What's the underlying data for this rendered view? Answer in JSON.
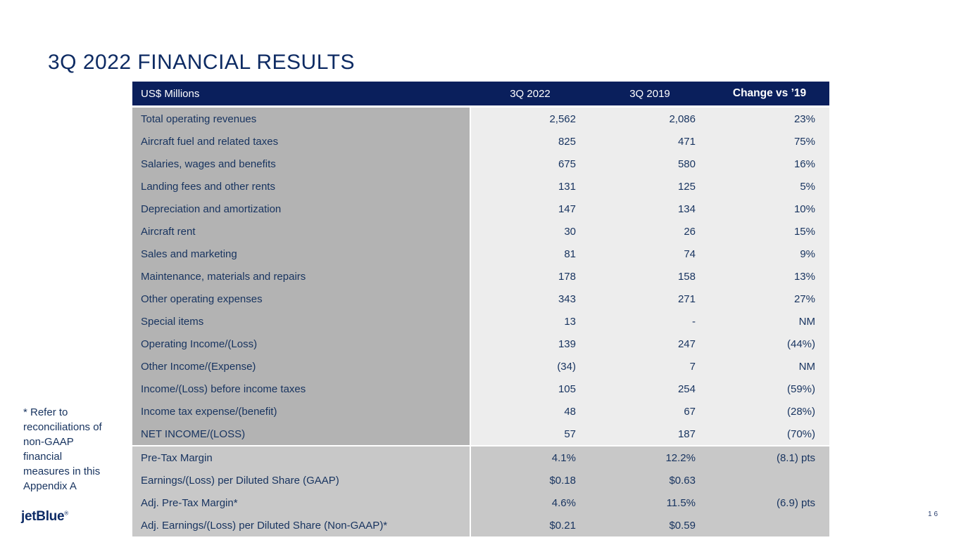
{
  "slide": {
    "title": "3Q 2022 FINANCIAL RESULTS",
    "footnote": "* Refer to reconciliations of non-GAAP financial measures in this Appendix A",
    "logo_text": "jetBlue",
    "logo_trademark": "®",
    "page_number": "16"
  },
  "colors": {
    "header_bg": "#0a1f5c",
    "label_column_bg": "#b3b3b3",
    "values_bg": "#ededed",
    "summary_bg": "#c8c8c8",
    "navy_text": "#17335f",
    "title_navy": "#0e2b63"
  },
  "table": {
    "unit_header": "US$ Millions",
    "col_headers": [
      "3Q 2022",
      "3Q 2019",
      "Change vs ’19"
    ],
    "rows": [
      {
        "label": "Total operating revenues",
        "v2022": "2,562",
        "v2019": "2,086",
        "change": "23%",
        "section": "main"
      },
      {
        "label": "Aircraft fuel and related taxes",
        "v2022": "825",
        "v2019": "471",
        "change": "75%",
        "section": "main"
      },
      {
        "label": "Salaries, wages and benefits",
        "v2022": "675",
        "v2019": "580",
        "change": "16%",
        "section": "main"
      },
      {
        "label": "Landing fees and other rents",
        "v2022": "131",
        "v2019": "125",
        "change": "5%",
        "section": "main"
      },
      {
        "label": "Depreciation and amortization",
        "v2022": "147",
        "v2019": "134",
        "change": "10%",
        "section": "main"
      },
      {
        "label": "Aircraft rent",
        "v2022": "30",
        "v2019": "26",
        "change": "15%",
        "section": "main"
      },
      {
        "label": "Sales and marketing",
        "v2022": "81",
        "v2019": "74",
        "change": "9%",
        "section": "main"
      },
      {
        "label": "Maintenance, materials and repairs",
        "v2022": "178",
        "v2019": "158",
        "change": "13%",
        "section": "main"
      },
      {
        "label": "Other operating expenses",
        "v2022": "343",
        "v2019": "271",
        "change": "27%",
        "section": "main"
      },
      {
        "label": "Special items",
        "v2022": "13",
        "v2019": "-",
        "change": "NM",
        "section": "main"
      },
      {
        "label": "Operating Income/(Loss)",
        "v2022": "139",
        "v2019": "247",
        "change": "(44%)",
        "section": "main"
      },
      {
        "label": "Other Income/(Expense)",
        "v2022": "(34)",
        "v2019": "7",
        "change": "NM",
        "section": "main"
      },
      {
        "label": "Income/(Loss) before income taxes",
        "v2022": "105",
        "v2019": "254",
        "change": "(59%)",
        "section": "main"
      },
      {
        "label": "Income tax expense/(benefit)",
        "v2022": "48",
        "v2019": "67",
        "change": "(28%)",
        "section": "main"
      },
      {
        "label": "NET INCOME/(LOSS)",
        "v2022": "57",
        "v2019": "187",
        "change": "(70%)",
        "section": "main"
      },
      {
        "label": "Pre-Tax Margin",
        "v2022": "4.1%",
        "v2019": "12.2%",
        "change": "(8.1) pts",
        "section": "summary"
      },
      {
        "label": "Earnings/(Loss) per Diluted Share (GAAP)",
        "v2022": "$0.18",
        "v2019": "$0.63",
        "change": "",
        "section": "summary"
      },
      {
        "label": "Adj. Pre-Tax Margin*",
        "v2022": "4.6%",
        "v2019": "11.5%",
        "change": "(6.9) pts",
        "section": "summary"
      },
      {
        "label": "Adj. Earnings/(Loss) per Diluted Share (Non-GAAP)*",
        "v2022": "$0.21",
        "v2019": "$0.59",
        "change": "",
        "section": "summary"
      }
    ]
  }
}
